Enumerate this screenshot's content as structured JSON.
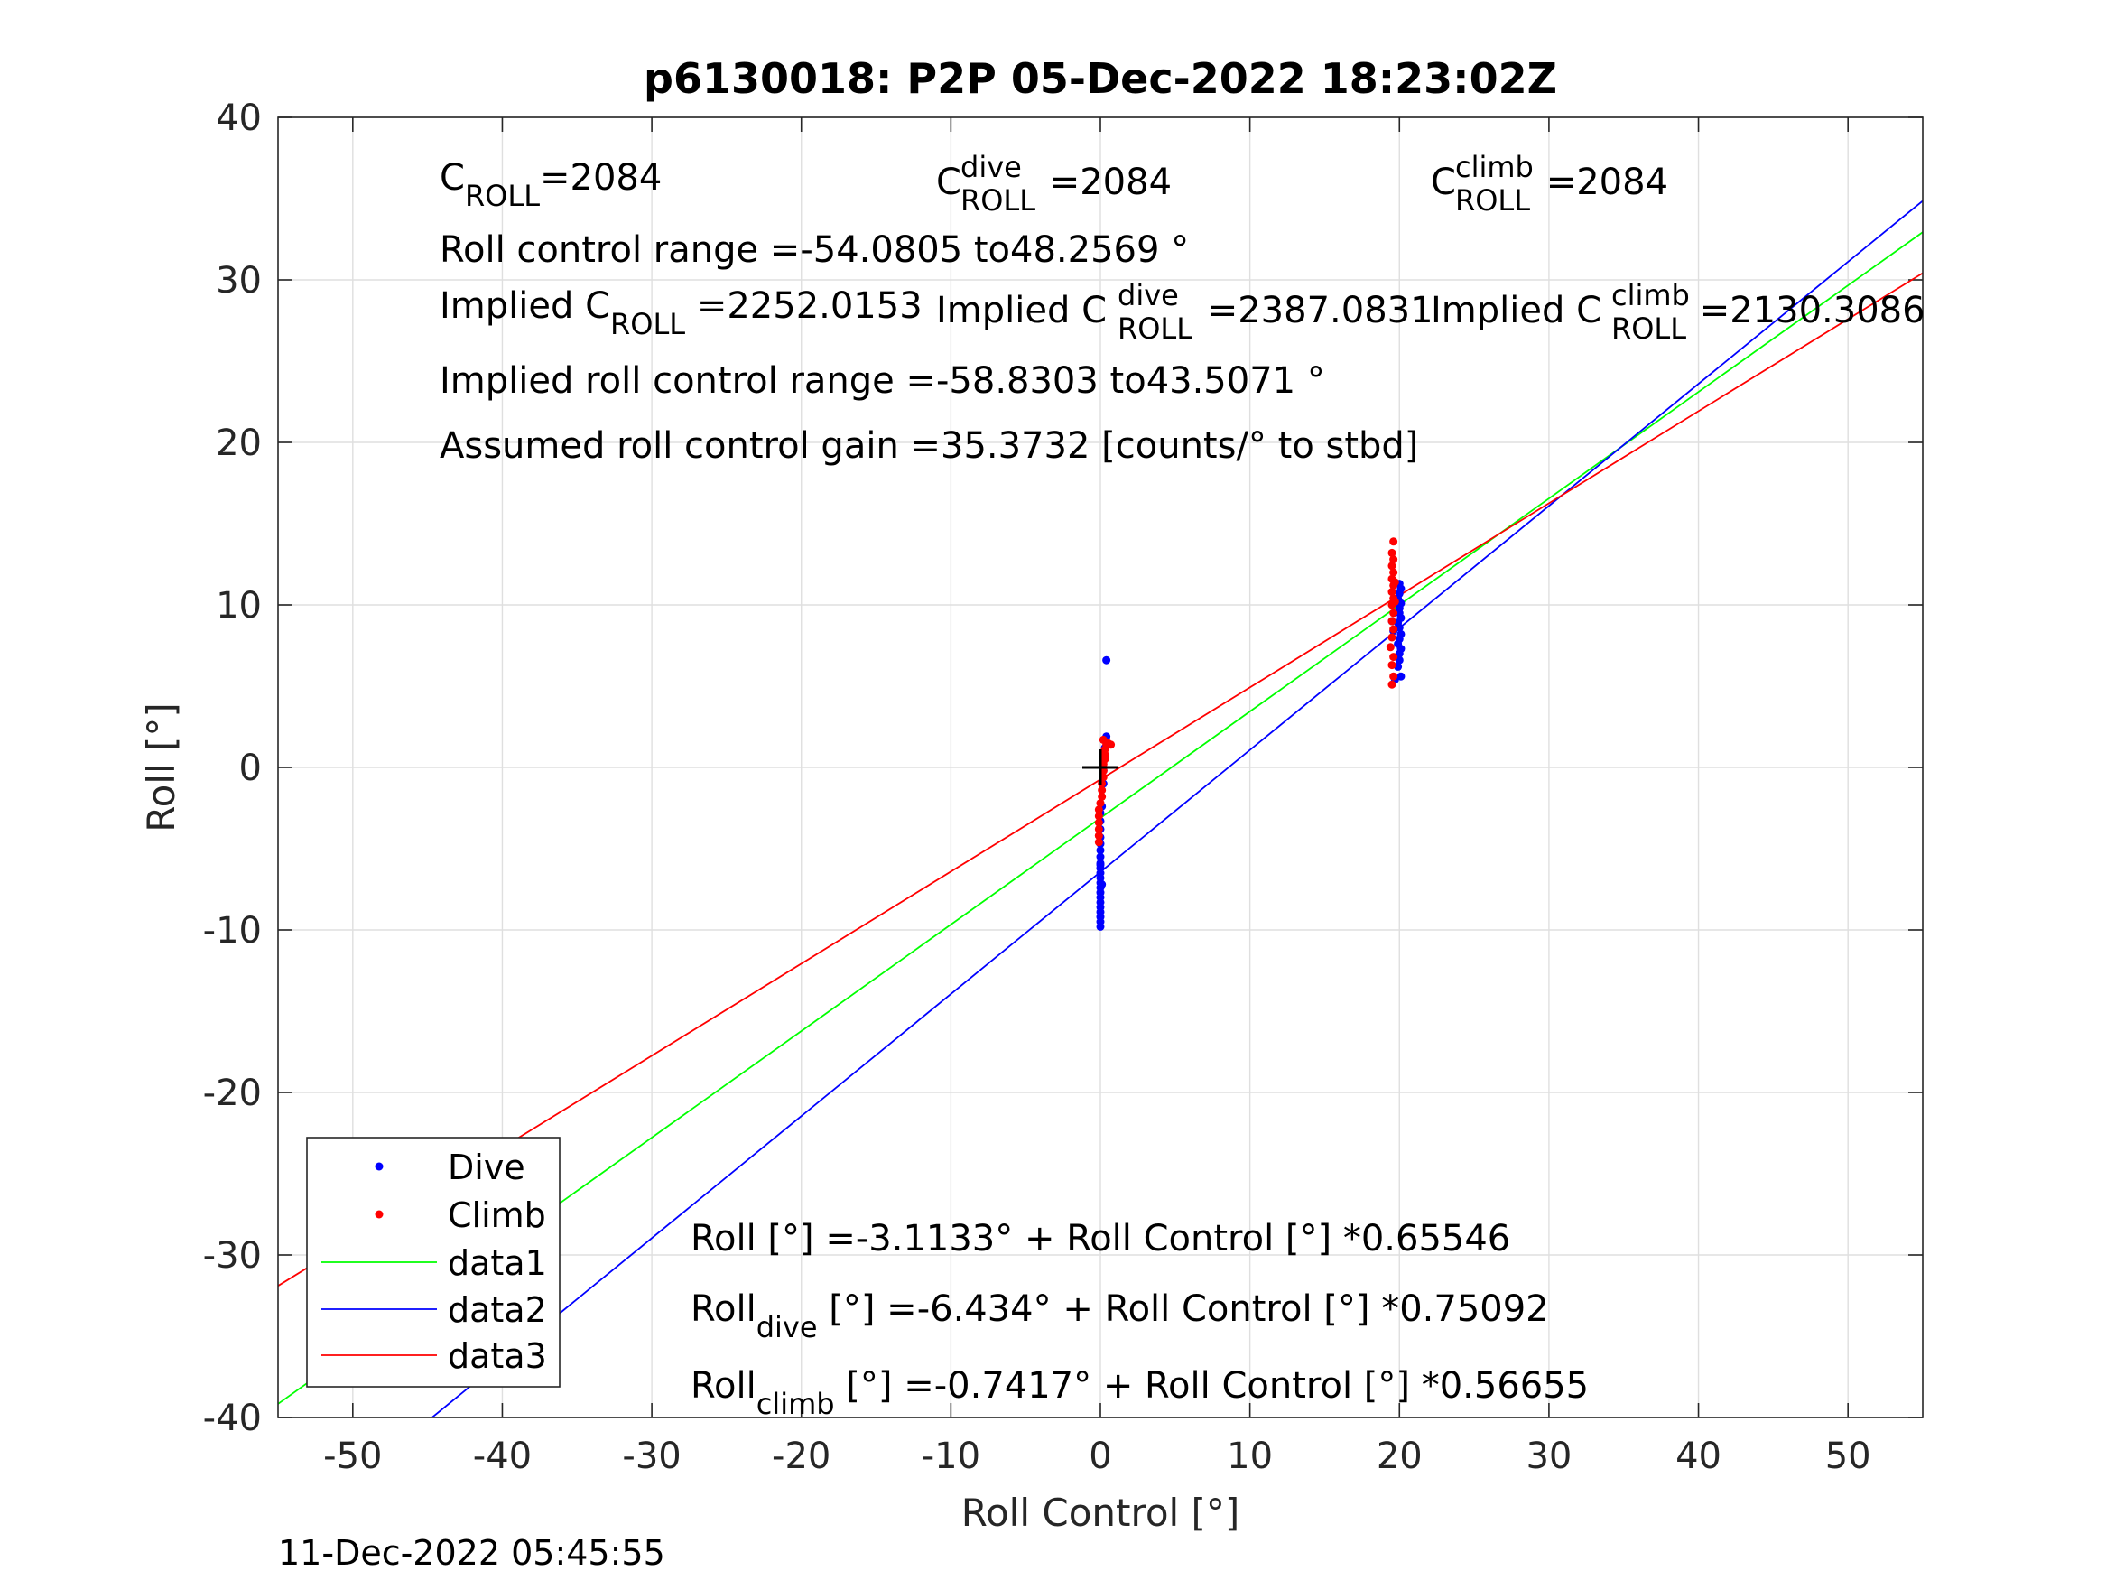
{
  "chart_data": {
    "type": "scatter",
    "title": "p6130018: P2P 05-Dec-2022 18:23:02Z",
    "xlabel": "Roll Control [°]",
    "ylabel": "Roll [°]",
    "xlim": [
      -55,
      55
    ],
    "ylim": [
      -40,
      40
    ],
    "x_ticks": [
      -50,
      -40,
      -30,
      -20,
      -10,
      0,
      10,
      20,
      30,
      40,
      50
    ],
    "y_ticks": [
      -40,
      -30,
      -20,
      -10,
      0,
      10,
      20,
      30,
      40
    ],
    "grid": true,
    "legend_position": "bottom-left",
    "timestamp": "11-Dec-2022 05:45:55",
    "annotations": {
      "c_roll": {
        "base": "C",
        "sub": "ROLL",
        "value": "=2084"
      },
      "c_roll_dive": {
        "base": "C",
        "sup": "dive",
        "sub": "ROLL",
        "value": " =2084"
      },
      "c_roll_climb": {
        "base": "C",
        "sup": "climb",
        "sub": "ROLL",
        "value": " =2084"
      },
      "roll_control_range": "Roll control range =-54.0805 to48.2569 °",
      "implied_c_roll": {
        "prefix": "Implied C",
        "sub": "ROLL",
        "value": " =2252.0153"
      },
      "implied_c_roll_dive": {
        "prefix": "Implied C",
        "sup": "dive",
        "sub": "ROLL",
        "value": " =2387.0831"
      },
      "implied_c_roll_climb": {
        "prefix": "Implied C",
        "sup": "climb",
        "sub": "ROLL",
        "value": " =2130.3086"
      },
      "implied_range": "Implied roll control range =-58.8303 to43.5071 °",
      "assumed_gain": "Assumed roll control gain =35.3732 [counts/° to stbd]",
      "eq_all": "Roll [°] =-3.1133° + Roll Control [°] *0.65546",
      "eq_dive": {
        "base": "Roll",
        "sub": "dive",
        "rest": " [°] =-6.434° + Roll Control [°] *0.75092"
      },
      "eq_climb": {
        "base": "Roll",
        "sub": "climb",
        "rest": " [°] =-0.7417° + Roll Control [°] *0.56655"
      }
    },
    "series": [
      {
        "name": "Dive",
        "kind": "scatter",
        "color": "#0000ff",
        "points": [
          [
            0.0,
            -9.8
          ],
          [
            0.0,
            -9.5
          ],
          [
            0.0,
            -9.2
          ],
          [
            0.0,
            -8.9
          ],
          [
            0.0,
            -8.6
          ],
          [
            0.0,
            -8.3
          ],
          [
            0.0,
            -8.0
          ],
          [
            0.0,
            -7.7
          ],
          [
            0.0,
            -7.4
          ],
          [
            0.0,
            -7.1
          ],
          [
            0.0,
            -6.8
          ],
          [
            0.0,
            -6.5
          ],
          [
            0.0,
            -6.2
          ],
          [
            0.0,
            -5.9
          ],
          [
            0.0,
            -5.5
          ],
          [
            0.0,
            -5.1
          ],
          [
            0.0,
            -4.7
          ],
          [
            0.0,
            -4.3
          ],
          [
            0.0,
            -3.8
          ],
          [
            0.0,
            -3.3
          ],
          [
            0.0,
            -2.8
          ],
          [
            0.1,
            -2.4
          ],
          [
            0.0,
            -6.0
          ],
          [
            0.1,
            -7.2
          ],
          [
            0.2,
            -1.0
          ],
          [
            0.2,
            -0.2
          ],
          [
            0.3,
            0.6
          ],
          [
            0.3,
            1.2
          ],
          [
            0.4,
            1.9
          ],
          [
            0.4,
            6.6
          ],
          [
            19.7,
            5.4
          ],
          [
            20.1,
            5.6
          ],
          [
            19.9,
            6.2
          ],
          [
            20.0,
            6.6
          ],
          [
            20.0,
            7.0
          ],
          [
            20.1,
            7.3
          ],
          [
            19.9,
            7.6
          ],
          [
            20.0,
            7.9
          ],
          [
            20.1,
            8.2
          ],
          [
            20.0,
            8.6
          ],
          [
            19.9,
            8.9
          ],
          [
            20.1,
            9.2
          ],
          [
            20.0,
            9.5
          ],
          [
            20.0,
            9.8
          ],
          [
            20.1,
            10.1
          ],
          [
            19.9,
            10.4
          ],
          [
            20.0,
            10.7
          ],
          [
            20.1,
            11.0
          ],
          [
            20.0,
            11.3
          ],
          [
            19.6,
            8.4
          ],
          [
            19.5,
            9.0
          ]
        ]
      },
      {
        "name": "Climb",
        "kind": "scatter",
        "color": "#ff0000",
        "points": [
          [
            -0.1,
            -4.6
          ],
          [
            -0.1,
            -4.2
          ],
          [
            -0.1,
            -3.8
          ],
          [
            -0.1,
            -3.4
          ],
          [
            -0.1,
            -3.0
          ],
          [
            -0.1,
            -2.6
          ],
          [
            0.0,
            -2.2
          ],
          [
            0.1,
            -1.8
          ],
          [
            0.1,
            -1.4
          ],
          [
            0.1,
            -1.0
          ],
          [
            0.2,
            -0.6
          ],
          [
            0.2,
            -0.2
          ],
          [
            0.2,
            0.2
          ],
          [
            0.3,
            0.5
          ],
          [
            0.3,
            0.8
          ],
          [
            0.3,
            1.1
          ],
          [
            0.4,
            1.4
          ],
          [
            0.5,
            1.5
          ],
          [
            0.7,
            1.4
          ],
          [
            0.2,
            1.7
          ],
          [
            19.5,
            5.1
          ],
          [
            19.6,
            5.6
          ],
          [
            19.5,
            6.3
          ],
          [
            19.6,
            6.8
          ],
          [
            19.4,
            7.4
          ],
          [
            19.5,
            8.0
          ],
          [
            19.6,
            8.5
          ],
          [
            19.5,
            9.0
          ],
          [
            19.6,
            9.5
          ],
          [
            19.5,
            10.0
          ],
          [
            19.6,
            10.4
          ],
          [
            19.5,
            10.8
          ],
          [
            19.6,
            11.2
          ],
          [
            19.5,
            11.6
          ],
          [
            19.6,
            12.0
          ],
          [
            19.5,
            12.4
          ],
          [
            19.6,
            12.8
          ],
          [
            19.5,
            13.2
          ],
          [
            19.6,
            13.9
          ],
          [
            19.7,
            11.4
          ],
          [
            19.7,
            10.2
          ]
        ]
      },
      {
        "name": "data1",
        "kind": "line",
        "color": "#00ff00",
        "intercept": -3.1133,
        "slope": 0.65546,
        "x_range": [
          -55,
          55
        ]
      },
      {
        "name": "data2",
        "kind": "line",
        "color": "#0000ff",
        "intercept": -6.434,
        "slope": 0.75092,
        "x_range": [
          -55,
          55
        ]
      },
      {
        "name": "data3",
        "kind": "line",
        "color": "#ff0000",
        "intercept": -0.7417,
        "slope": 0.56655,
        "x_range": [
          -55,
          55
        ]
      }
    ],
    "origin_marker": {
      "x": 0,
      "y": 0,
      "symbol": "+",
      "color": "#000000"
    }
  }
}
